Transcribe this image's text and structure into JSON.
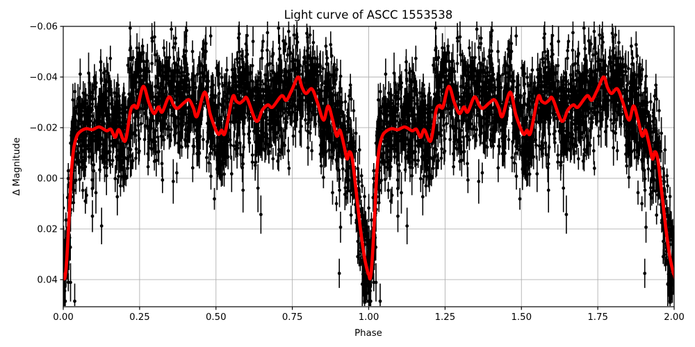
{
  "chart_data": {
    "type": "scatter",
    "title": "Light curve of ASCC 1553538",
    "xlabel": "Phase",
    "ylabel": "Δ Magnitude",
    "x_range": [
      0,
      2
    ],
    "y_top": -0.06,
    "y_bottom": 0.0507,
    "y_axis_inverted": true,
    "grid": true,
    "grid_color": "#b0b0b0",
    "axis_color": "#000000",
    "background_color": "#ffffff",
    "x_ticks": [
      {
        "v": 0.0,
        "label": "0.00"
      },
      {
        "v": 0.25,
        "label": "0.25"
      },
      {
        "v": 0.5,
        "label": "0.50"
      },
      {
        "v": 0.75,
        "label": "0.75"
      },
      {
        "v": 1.0,
        "label": "1.00"
      },
      {
        "v": 1.25,
        "label": "1.25"
      },
      {
        "v": 1.5,
        "label": "1.50"
      },
      {
        "v": 1.75,
        "label": "1.75"
      },
      {
        "v": 2.0,
        "label": "2.00"
      }
    ],
    "y_ticks": [
      {
        "v": -0.06,
        "label": "−0.06"
      },
      {
        "v": -0.04,
        "label": "−0.04"
      },
      {
        "v": -0.02,
        "label": "−0.02"
      },
      {
        "v": 0.0,
        "label": "0.00"
      },
      {
        "v": 0.02,
        "label": "0.02"
      },
      {
        "v": 0.04,
        "label": "0.04"
      }
    ],
    "series": [
      {
        "name": "observations",
        "type": "scatter_errorbar",
        "color": "#000000",
        "marker_radius": 2.4,
        "errorbar_line_width": 1.6,
        "points_per_cycle": 2200,
        "cycles": [
          0,
          1
        ],
        "scatter_sigma": 0.0105,
        "mean_offset": -0.0015,
        "err_base": 0.0028,
        "err_spread": 0.002,
        "err_min": 0.002,
        "err_max": 0.0095,
        "outlier_fraction": 0.006,
        "outlier_shift_min": 0.018,
        "outlier_shift_span": 0.035,
        "outlier_err_mult": 1.8,
        "seed": 20240907
      },
      {
        "name": "smoothed-light-curve",
        "type": "line",
        "color": "#ff0000",
        "line_width": 4.6,
        "repeat_offsets": [
          0,
          1,
          2
        ],
        "base_cycle_points": [
          [
            0.0,
            0.0378
          ],
          [
            0.005,
            0.0395
          ],
          [
            0.011,
            0.033
          ],
          [
            0.018,
            0.018
          ],
          [
            0.026,
            -0.001
          ],
          [
            0.034,
            -0.0115
          ],
          [
            0.044,
            -0.0165
          ],
          [
            0.056,
            -0.0185
          ],
          [
            0.075,
            -0.0196
          ],
          [
            0.095,
            -0.0192
          ],
          [
            0.118,
            -0.0203
          ],
          [
            0.142,
            -0.0188
          ],
          [
            0.156,
            -0.0194
          ],
          [
            0.17,
            -0.0162
          ],
          [
            0.182,
            -0.0192
          ],
          [
            0.203,
            -0.0148
          ],
          [
            0.22,
            -0.0265
          ],
          [
            0.232,
            -0.0288
          ],
          [
            0.243,
            -0.0281
          ],
          [
            0.262,
            -0.0363
          ],
          [
            0.28,
            -0.03
          ],
          [
            0.297,
            -0.0256
          ],
          [
            0.312,
            -0.0282
          ],
          [
            0.324,
            -0.0262
          ],
          [
            0.346,
            -0.0321
          ],
          [
            0.362,
            -0.0288
          ],
          [
            0.374,
            -0.0276
          ],
          [
            0.395,
            -0.0298
          ],
          [
            0.412,
            -0.031
          ],
          [
            0.426,
            -0.0278
          ],
          [
            0.438,
            -0.0245
          ],
          [
            0.463,
            -0.034
          ],
          [
            0.482,
            -0.025
          ],
          [
            0.506,
            -0.0176
          ],
          [
            0.518,
            -0.019
          ],
          [
            0.53,
            -0.018
          ],
          [
            0.554,
            -0.032
          ],
          [
            0.566,
            -0.0305
          ],
          [
            0.578,
            -0.0297
          ],
          [
            0.59,
            -0.0308
          ],
          [
            0.602,
            -0.0315
          ],
          [
            0.632,
            -0.0226
          ],
          [
            0.652,
            -0.027
          ],
          [
            0.67,
            -0.029
          ],
          [
            0.685,
            -0.0281
          ],
          [
            0.715,
            -0.0326
          ],
          [
            0.73,
            -0.0308
          ],
          [
            0.747,
            -0.0345
          ],
          [
            0.769,
            -0.04
          ],
          [
            0.782,
            -0.0358
          ],
          [
            0.795,
            -0.0335
          ],
          [
            0.814,
            -0.0353
          ],
          [
            0.832,
            -0.03
          ],
          [
            0.852,
            -0.023
          ],
          [
            0.867,
            -0.0286
          ],
          [
            0.881,
            -0.0235
          ],
          [
            0.895,
            -0.0167
          ],
          [
            0.906,
            -0.019
          ],
          [
            0.919,
            -0.013
          ],
          [
            0.929,
            -0.0076
          ],
          [
            0.937,
            -0.0105
          ],
          [
            0.946,
            -0.0078
          ],
          [
            0.957,
            0.003
          ],
          [
            0.972,
            0.019
          ],
          [
            0.986,
            0.031
          ],
          [
            0.997,
            0.0372
          ]
        ]
      }
    ]
  }
}
